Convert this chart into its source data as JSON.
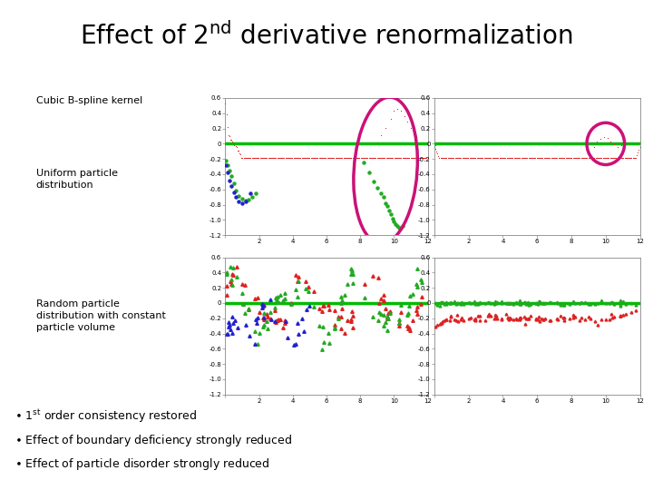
{
  "title_part1": "Effect of 2",
  "title_sup": "nd",
  "title_part2": " derivative renormalization",
  "label_cubic": "Cubic B-spline kernel",
  "label_uniform": "Uniform particle\ndistribution",
  "label_random": "Random particle\ndistribution with constant\nparticle volume",
  "bullet1": "• 1",
  "bullet1b": "st",
  "bullet1c": " order consistency restored",
  "bullet2": "• Effect of boundary deficiency strongly reduced",
  "bullet3": "• Effect of particle disorder strongly reduced",
  "bg_color": "#ffffff",
  "plot_border": "#aaaaaa",
  "green_line_color": "#00bb00",
  "red_dot_color": "#dd2222",
  "blue_dot_color": "#2222cc",
  "green_dot_color": "#22aa22",
  "circle_color": "#cc1177",
  "xmin": 0,
  "xmax": 12,
  "ymin": -1.2,
  "ymax": 0.6
}
